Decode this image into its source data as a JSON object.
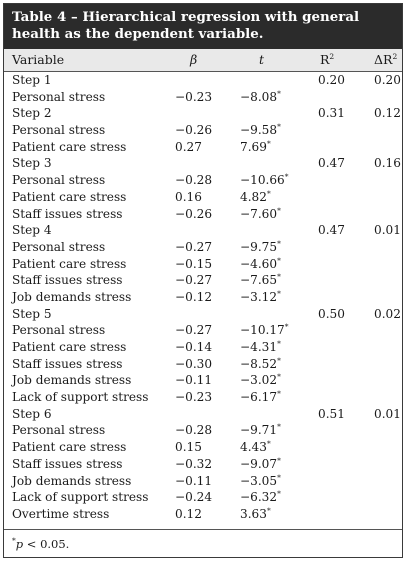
{
  "table": {
    "title": "Table 4 – Hierarchical regression with general health as the dependent variable.",
    "headers": {
      "variable": "Variable",
      "beta": "β",
      "t": "t",
      "r2": "R",
      "r2_sup": "2",
      "dr2": "ΔR",
      "dr2_sup": "2"
    },
    "rows": [
      {
        "label": "Step 1",
        "beta": "",
        "t": "",
        "sig": "",
        "r2": "0.20",
        "dr2": "0.20"
      },
      {
        "label": "Personal stress",
        "beta": "−0.23",
        "t": "−8.08",
        "sig": "*",
        "r2": "",
        "dr2": ""
      },
      {
        "label": "Step 2",
        "beta": "",
        "t": "",
        "sig": "",
        "r2": "0.31",
        "dr2": "0.12"
      },
      {
        "label": "Personal stress",
        "beta": "−0.26",
        "t": "−9.58",
        "sig": "*",
        "r2": "",
        "dr2": ""
      },
      {
        "label": "Patient care stress",
        "beta": "0.27",
        "t": "7.69",
        "sig": "*",
        "r2": "",
        "dr2": ""
      },
      {
        "label": "Step 3",
        "beta": "",
        "t": "",
        "sig": "",
        "r2": "0.47",
        "dr2": "0.16"
      },
      {
        "label": "Personal stress",
        "beta": "−0.28",
        "t": "−10.66",
        "sig": "*",
        "r2": "",
        "dr2": ""
      },
      {
        "label": "Patient care stress",
        "beta": "0.16",
        "t": "4.82",
        "sig": "*",
        "r2": "",
        "dr2": ""
      },
      {
        "label": "Staff issues stress",
        "beta": "−0.26",
        "t": "−7.60",
        "sig": "*",
        "r2": "",
        "dr2": ""
      },
      {
        "label": "Step 4",
        "beta": "",
        "t": "",
        "sig": "",
        "r2": "0.47",
        "dr2": "0.01"
      },
      {
        "label": "Personal stress",
        "beta": "−0.27",
        "t": "−9.75",
        "sig": "*",
        "r2": "",
        "dr2": ""
      },
      {
        "label": "Patient care stress",
        "beta": "−0.15",
        "t": "−4.60",
        "sig": "*",
        "r2": "",
        "dr2": ""
      },
      {
        "label": "Staff issues stress",
        "beta": "−0.27",
        "t": "−7.65",
        "sig": "*",
        "r2": "",
        "dr2": ""
      },
      {
        "label": "Job demands stress",
        "beta": "−0.12",
        "t": "−3.12",
        "sig": "*",
        "r2": "",
        "dr2": ""
      },
      {
        "label": "Step 5",
        "beta": "",
        "t": "",
        "sig": "",
        "r2": "0.50",
        "dr2": "0.02"
      },
      {
        "label": "Personal stress",
        "beta": "−0.27",
        "t": "−10.17",
        "sig": "*",
        "r2": "",
        "dr2": ""
      },
      {
        "label": "Patient care stress",
        "beta": "−0.14",
        "t": "−4.31",
        "sig": "*",
        "r2": "",
        "dr2": ""
      },
      {
        "label": "Staff issues stress",
        "beta": "−0.30",
        "t": "−8.52",
        "sig": "*",
        "r2": "",
        "dr2": ""
      },
      {
        "label": "Job demands stress",
        "beta": "−0.11",
        "t": "−3.02",
        "sig": "*",
        "r2": "",
        "dr2": ""
      },
      {
        "label": "Lack of support stress",
        "beta": "−0.23",
        "t": "−6.17",
        "sig": "*",
        "r2": "",
        "dr2": ""
      },
      {
        "label": "Step 6",
        "beta": "",
        "t": "",
        "sig": "",
        "r2": "0.51",
        "dr2": "0.01"
      },
      {
        "label": "Personal stress",
        "beta": "−0.28",
        "t": "−9.71",
        "sig": "*",
        "r2": "",
        "dr2": ""
      },
      {
        "label": "Patient care stress",
        "beta": "0.15",
        "t": "4.43",
        "sig": "*",
        "r2": "",
        "dr2": ""
      },
      {
        "label": "Staff issues stress",
        "beta": "−0.32",
        "t": "−9.07",
        "sig": "*",
        "r2": "",
        "dr2": ""
      },
      {
        "label": "Job demands stress",
        "beta": "−0.11",
        "t": "−3.05",
        "sig": "*",
        "r2": "",
        "dr2": ""
      },
      {
        "label": "Lack of support stress",
        "beta": "−0.24",
        "t": "−6.32",
        "sig": "*",
        "r2": "",
        "dr2": ""
      },
      {
        "label": "Overtime stress",
        "beta": "0.12",
        "t": "3.63",
        "sig": "*",
        "r2": "",
        "dr2": ""
      }
    ],
    "footnote": {
      "mark": "*",
      "p": "p",
      "text": " < 0.05."
    }
  }
}
